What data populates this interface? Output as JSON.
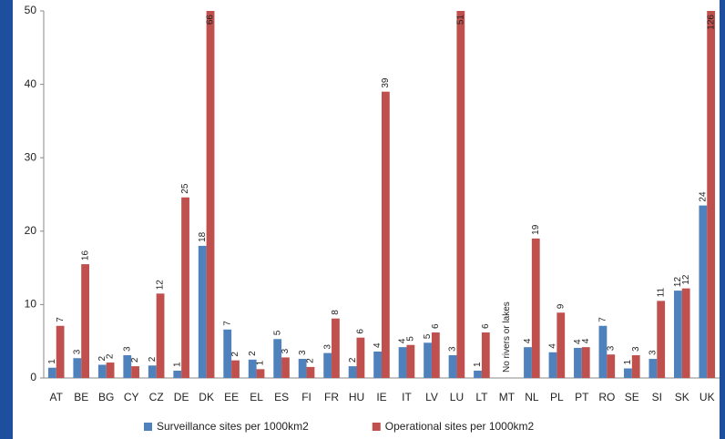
{
  "chart_data": {
    "type": "bar",
    "categories": [
      "AT",
      "BE",
      "BG",
      "CY",
      "CZ",
      "DE",
      "DK",
      "EE",
      "EL",
      "ES",
      "FI",
      "FR",
      "HU",
      "IE",
      "IT",
      "LV",
      "LU",
      "LT",
      "MT",
      "NL",
      "PL",
      "PT",
      "RO",
      "SE",
      "SI",
      "SK",
      "UK"
    ],
    "series": [
      {
        "name": "Surveillance sites per 1000km2",
        "color": "#4f81bd",
        "values": [
          1.4,
          2.7,
          1.8,
          3.1,
          1.7,
          1.0,
          18,
          6.6,
          2.5,
          5.3,
          2.6,
          3.4,
          1.6,
          3.6,
          4.2,
          4.8,
          3.1,
          1.0,
          null,
          4.2,
          3.5,
          4.1,
          7.1,
          1.3,
          2.6,
          11.9,
          23.5
        ],
        "value_labels": [
          "1",
          "3",
          "2",
          "3",
          "2",
          "1",
          "18",
          "7",
          "2",
          "5",
          "3",
          "3",
          "2",
          "4",
          "4",
          "5",
          "3",
          "1",
          null,
          "4",
          "4",
          "4",
          "7",
          "1",
          "3",
          "12",
          "24"
        ]
      },
      {
        "name": "Operational sites per 1000km2",
        "color": "#c0504d",
        "values": [
          7.1,
          15.5,
          2.1,
          1.6,
          11.5,
          24.6,
          66,
          2.4,
          1.2,
          2.8,
          1.5,
          8.1,
          5.5,
          39,
          4.5,
          6.2,
          51,
          6.2,
          null,
          19,
          8.9,
          4.2,
          3.2,
          3.1,
          10.5,
          12.2,
          126
        ],
        "value_labels": [
          "7",
          "16",
          "2",
          "2",
          "12",
          "25",
          "66",
          "2",
          "1",
          "3",
          "2",
          "8",
          "6",
          "39",
          "5",
          "6",
          "51",
          "6",
          null,
          "19",
          "9",
          "4",
          "3",
          "3",
          "11",
          "12",
          "126"
        ]
      }
    ],
    "annotations": [
      {
        "category": "MT",
        "text": "No rivers or lakes"
      }
    ],
    "ylim": [
      0,
      50
    ],
    "yticks": [
      0,
      10,
      20,
      30,
      40,
      50
    ],
    "grid": false,
    "legend": "bottom"
  }
}
